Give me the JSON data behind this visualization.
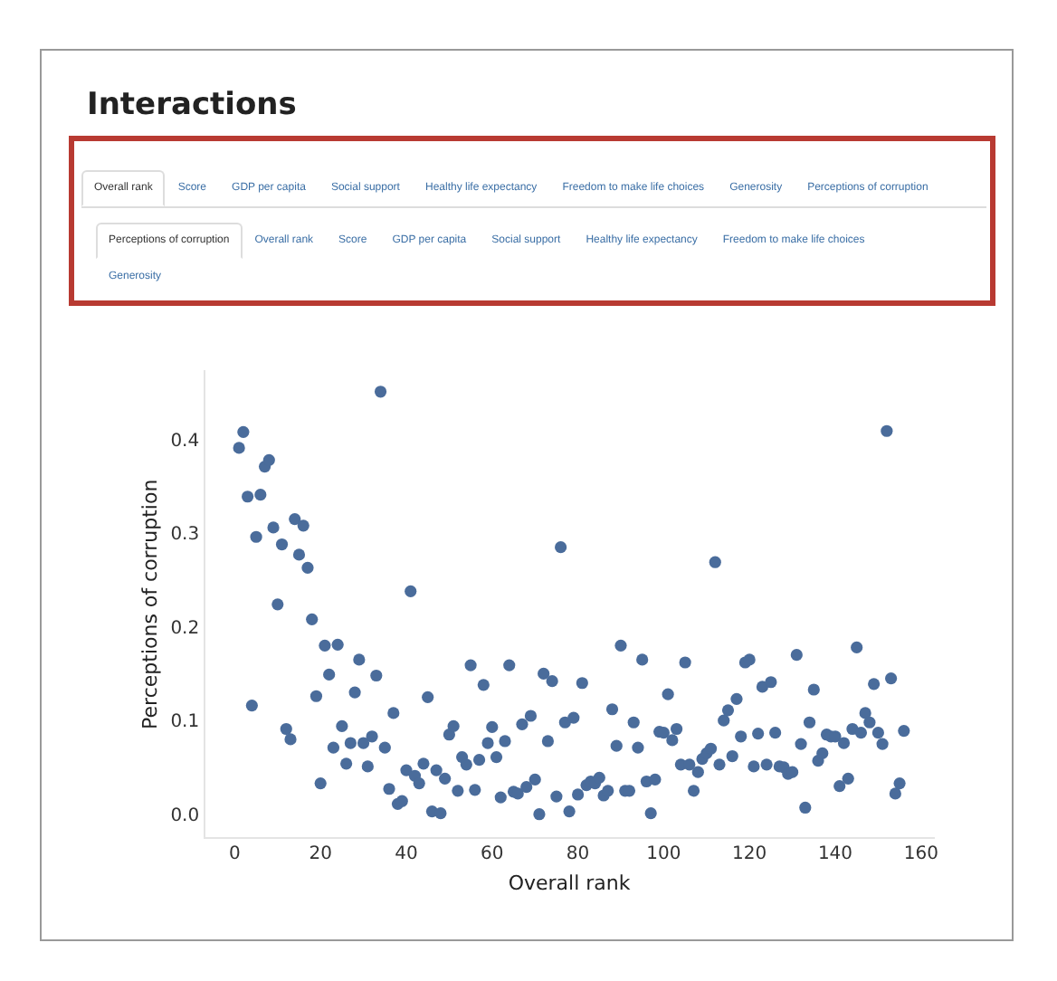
{
  "chart_data": {
    "type": "scatter",
    "title": "Interactions",
    "xlabel": "Overall rank",
    "ylabel": "Perceptions of corruption",
    "annotations": [
      "Overall rank",
      "Score",
      "GDP per capita",
      "Social support",
      "Healthy life expectancy",
      "Freedom to make life choices",
      "Generosity",
      "Perceptions of corruption",
      "Perceptions of corruption",
      "Overall rank",
      "Score",
      "GDP per capita",
      "Social support",
      "Healthy life expectancy",
      "Freedom to make life choices",
      "Generosity"
    ],
    "x": [
      1,
      2,
      3,
      4,
      5,
      6,
      7,
      8,
      9,
      10,
      11,
      12,
      13,
      14,
      15,
      16,
      17,
      18,
      19,
      20,
      21,
      22,
      23,
      24,
      25,
      26,
      27,
      28,
      29,
      30,
      31,
      32,
      33,
      34,
      35,
      36,
      37,
      38,
      39,
      40,
      41,
      42,
      43,
      44,
      45,
      46,
      47,
      48,
      49,
      50,
      51,
      52,
      53,
      54,
      55,
      56,
      57,
      58,
      59,
      60,
      61,
      62,
      63,
      64,
      65,
      66,
      67,
      68,
      69,
      70,
      71,
      72,
      73,
      74,
      75,
      76,
      77,
      78,
      79,
      80,
      81,
      82,
      83,
      84,
      85,
      86,
      87,
      88,
      89,
      90,
      91,
      92,
      93,
      94,
      95,
      96,
      97,
      98,
      99,
      100,
      101,
      102,
      103,
      104,
      105,
      106,
      107,
      108,
      109,
      110,
      111,
      112,
      113,
      114,
      115,
      116,
      117,
      118,
      119,
      120,
      121,
      122,
      123,
      124,
      125,
      126,
      127,
      128,
      129,
      130,
      131,
      132,
      133,
      134,
      135,
      136,
      137,
      138,
      139,
      140,
      141,
      142,
      143,
      144,
      145,
      146,
      147,
      148,
      149,
      150,
      151,
      152,
      153,
      154,
      155,
      156
    ],
    "series": [
      {
        "color": "#4a6c9b",
        "values": [
          0.393,
          0.41,
          0.341,
          0.118,
          0.298,
          0.343,
          0.373,
          0.38,
          0.308,
          0.226,
          0.29,
          0.093,
          0.082,
          0.317,
          0.279,
          0.31,
          0.265,
          0.21,
          0.128,
          0.035,
          0.182,
          0.151,
          0.073,
          0.183,
          0.096,
          0.056,
          0.078,
          0.132,
          0.167,
          0.078,
          0.053,
          0.085,
          0.15,
          0.453,
          0.073,
          0.029,
          0.11,
          0.013,
          0.016,
          0.049,
          0.24,
          0.043,
          0.035,
          0.056,
          0.127,
          0.005,
          0.049,
          0.003,
          0.04,
          0.087,
          0.096,
          0.027,
          0.063,
          0.055,
          0.161,
          0.028,
          0.06,
          0.14,
          0.078,
          0.095,
          0.063,
          0.02,
          0.08,
          0.161,
          0.026,
          0.024,
          0.098,
          0.031,
          0.107,
          0.039,
          0.002,
          0.152,
          0.08,
          0.144,
          0.021,
          0.287,
          0.1,
          0.005,
          0.105,
          0.023,
          0.142,
          0.033,
          0.037,
          0.035,
          0.041,
          0.022,
          0.027,
          0.114,
          0.075,
          0.182,
          0.027,
          0.027,
          0.1,
          0.073,
          0.167,
          0.037,
          0.003,
          0.039,
          0.09,
          0.089,
          0.13,
          0.081,
          0.093,
          0.055,
          0.164,
          0.055,
          0.027,
          0.047,
          0.061,
          0.067,
          0.072,
          0.271,
          0.055,
          0.102,
          0.113,
          0.064,
          0.125,
          0.085,
          0.164,
          0.167,
          0.053,
          0.088,
          0.138,
          0.055,
          0.143,
          0.089,
          0.053,
          0.052,
          0.045,
          0.047,
          0.172,
          0.077,
          0.009,
          0.1,
          0.135,
          0.059,
          0.067,
          0.087,
          0.085,
          0.085,
          0.032,
          0.078,
          0.04,
          0.093,
          0.18,
          0.089,
          0.11,
          0.1,
          0.141,
          0.089,
          0.077,
          0.411,
          0.147,
          0.024,
          0.035,
          0.091
        ]
      }
    ],
    "marker": "circle",
    "grid": false,
    "legend": false,
    "xlim": [
      -7,
      163
    ],
    "xticks": [
      0,
      20,
      40,
      60,
      80,
      100,
      120,
      140,
      160
    ],
    "ylim": [
      -0.023,
      0.475
    ],
    "yticks": [
      {
        "value": 0,
        "label": "0.0"
      },
      {
        "value": 0.1,
        "label": "0.1"
      },
      {
        "value": 0.2,
        "label": "0.2"
      },
      {
        "value": 0.3,
        "label": "0.3"
      },
      {
        "value": 0.4,
        "label": "0.4"
      }
    ]
  }
}
